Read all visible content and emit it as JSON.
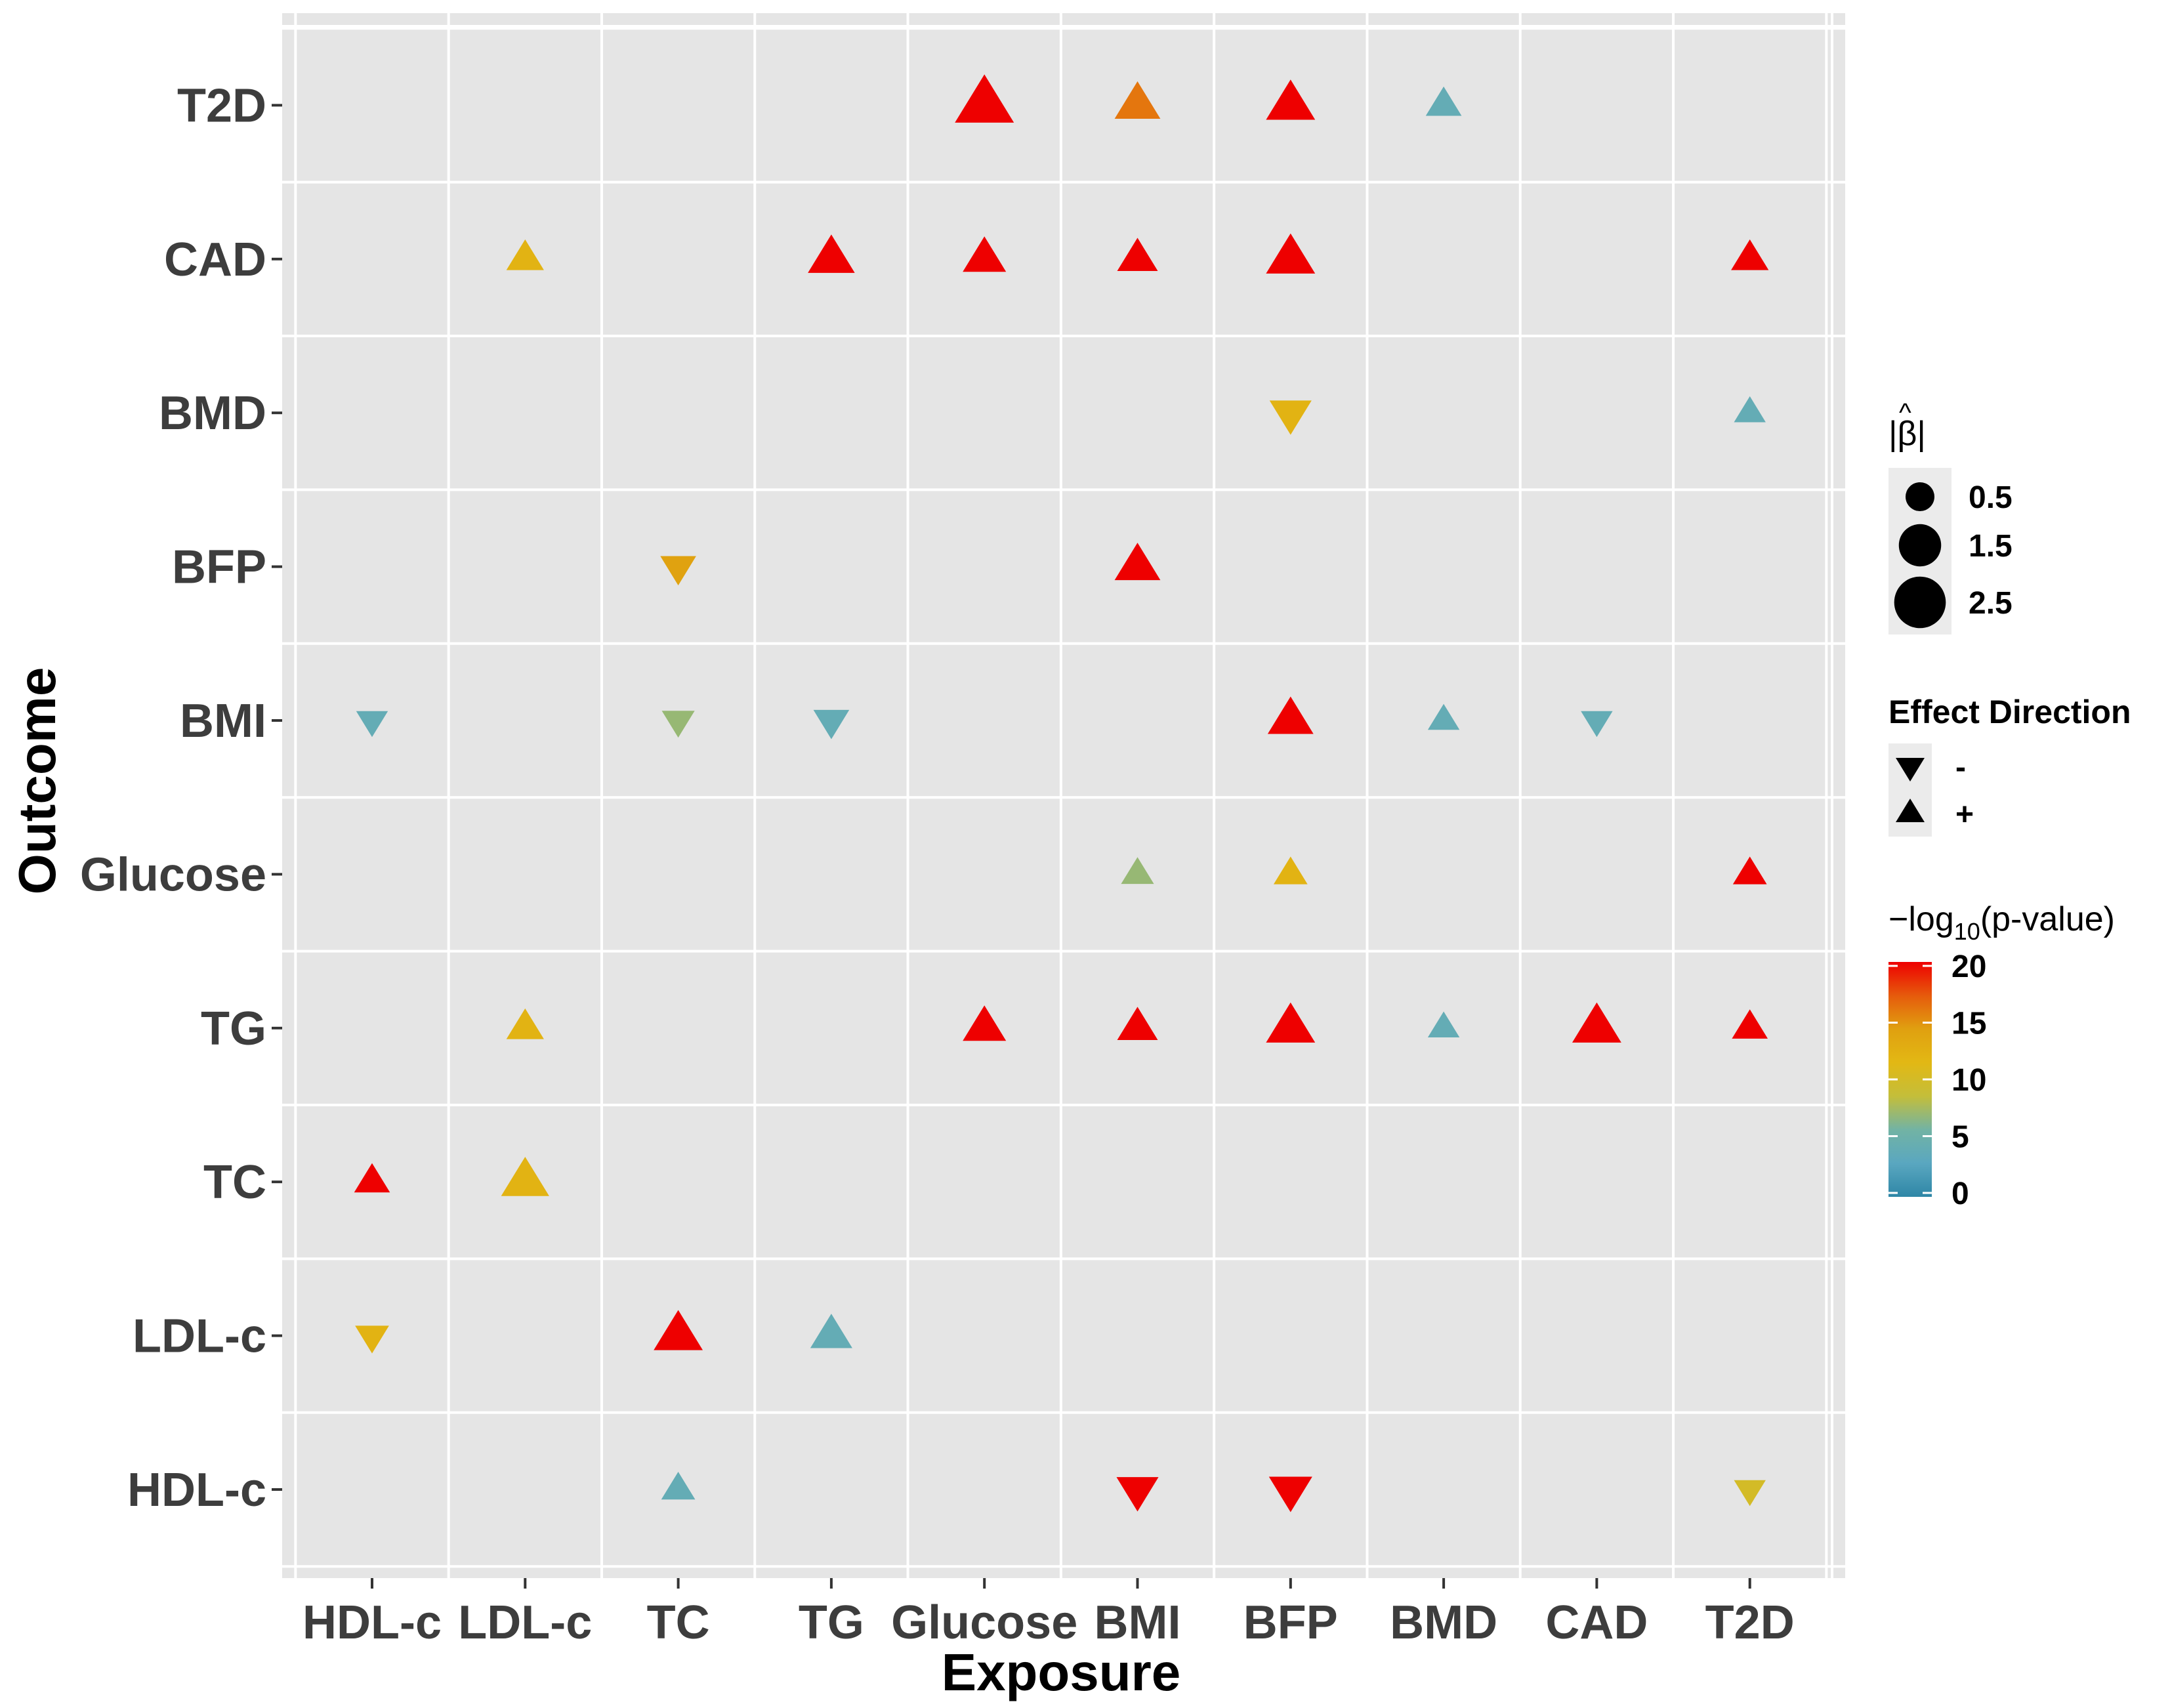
{
  "chart_data": {
    "type": "scatter",
    "xlabel": "Exposure",
    "ylabel": "Outcome",
    "x_categories": [
      "HDL-c",
      "LDL-c",
      "TC",
      "TG",
      "Glucose",
      "BMI",
      "BFP",
      "BMD",
      "CAD",
      "T2D"
    ],
    "y_categories": [
      "HDL-c",
      "LDL-c",
      "TC",
      "TG",
      "Glucose",
      "BMI",
      "BFP",
      "BMD",
      "CAD",
      "T2D"
    ],
    "size_legend": {
      "title": "|β̂|",
      "title_main": "|β|",
      "title_hat": "^",
      "values": [
        0.5,
        1.5,
        2.5
      ],
      "labels": [
        "0.5",
        "1.5",
        "2.5"
      ]
    },
    "direction_legend": {
      "title": "Effect Direction",
      "items": [
        {
          "label": "-",
          "direction": "-"
        },
        {
          "label": "+",
          "direction": "+"
        }
      ]
    },
    "color_legend": {
      "title": "−log10(p-value)",
      "title_prefix": "−log",
      "title_sub": "10",
      "title_suffix": "(p-value)",
      "range": [
        0,
        20
      ],
      "ticks": [
        0,
        5,
        10,
        15,
        20
      ],
      "tick_labels": [
        "0",
        "5",
        "10",
        "15",
        "20"
      ],
      "colors": [
        "#2e86a6",
        "#5aa7c0",
        "#72b3a4",
        "#c4be3a",
        "#e2b814",
        "#e0a010",
        "#e65a0c",
        "#ee0000"
      ]
    },
    "points": [
      {
        "exposure": "Glucose",
        "outcome": "T2D",
        "beta": 2.6,
        "direction": "+",
        "neglog10p": 20
      },
      {
        "exposure": "BMI",
        "outcome": "T2D",
        "beta": 1.2,
        "direction": "+",
        "neglog10p": 16
      },
      {
        "exposure": "BFP",
        "outcome": "T2D",
        "beta": 1.5,
        "direction": "+",
        "neglog10p": 20
      },
      {
        "exposure": "BMD",
        "outcome": "T2D",
        "beta": 0.5,
        "direction": "+",
        "neglog10p": 4
      },
      {
        "exposure": "LDL-c",
        "outcome": "CAD",
        "beta": 0.6,
        "direction": "+",
        "neglog10p": 12
      },
      {
        "exposure": "TG",
        "outcome": "CAD",
        "beta": 1.3,
        "direction": "+",
        "neglog10p": 20
      },
      {
        "exposure": "Glucose",
        "outcome": "CAD",
        "beta": 1.0,
        "direction": "+",
        "neglog10p": 20
      },
      {
        "exposure": "BMI",
        "outcome": "CAD",
        "beta": 0.8,
        "direction": "+",
        "neglog10p": 20
      },
      {
        "exposure": "BFP",
        "outcome": "CAD",
        "beta": 1.5,
        "direction": "+",
        "neglog10p": 20
      },
      {
        "exposure": "T2D",
        "outcome": "CAD",
        "beta": 0.6,
        "direction": "+",
        "neglog10p": 20
      },
      {
        "exposure": "BFP",
        "outcome": "BMD",
        "beta": 0.9,
        "direction": "-",
        "neglog10p": 12
      },
      {
        "exposure": "T2D",
        "outcome": "BMD",
        "beta": 0.3,
        "direction": "+",
        "neglog10p": 4
      },
      {
        "exposure": "TC",
        "outcome": "BFP",
        "beta": 0.5,
        "direction": "-",
        "neglog10p": 14
      },
      {
        "exposure": "BMI",
        "outcome": "BFP",
        "beta": 1.2,
        "direction": "+",
        "neglog10p": 20
      },
      {
        "exposure": "HDL-c",
        "outcome": "BMI",
        "beta": 0.3,
        "direction": "-",
        "neglog10p": 4
      },
      {
        "exposure": "TC",
        "outcome": "BMI",
        "beta": 0.35,
        "direction": "-",
        "neglog10p": 7
      },
      {
        "exposure": "TG",
        "outcome": "BMI",
        "beta": 0.5,
        "direction": "-",
        "neglog10p": 4
      },
      {
        "exposure": "BFP",
        "outcome": "BMI",
        "beta": 1.2,
        "direction": "+",
        "neglog10p": 20
      },
      {
        "exposure": "BMD",
        "outcome": "BMI",
        "beta": 0.3,
        "direction": "+",
        "neglog10p": 4
      },
      {
        "exposure": "CAD",
        "outcome": "BMI",
        "beta": 0.3,
        "direction": "-",
        "neglog10p": 4
      },
      {
        "exposure": "BMI",
        "outcome": "Glucose",
        "beta": 0.35,
        "direction": "+",
        "neglog10p": 7
      },
      {
        "exposure": "BFP",
        "outcome": "Glucose",
        "beta": 0.4,
        "direction": "+",
        "neglog10p": 12
      },
      {
        "exposure": "T2D",
        "outcome": "Glucose",
        "beta": 0.4,
        "direction": "+",
        "neglog10p": 20
      },
      {
        "exposure": "LDL-c",
        "outcome": "TG",
        "beta": 0.6,
        "direction": "+",
        "neglog10p": 12
      },
      {
        "exposure": "Glucose",
        "outcome": "TG",
        "beta": 1.0,
        "direction": "+",
        "neglog10p": 20
      },
      {
        "exposure": "BMI",
        "outcome": "TG",
        "beta": 0.8,
        "direction": "+",
        "neglog10p": 20
      },
      {
        "exposure": "BFP",
        "outcome": "TG",
        "beta": 1.5,
        "direction": "+",
        "neglog10p": 20
      },
      {
        "exposure": "BMD",
        "outcome": "TG",
        "beta": 0.3,
        "direction": "+",
        "neglog10p": 4
      },
      {
        "exposure": "CAD",
        "outcome": "TG",
        "beta": 1.5,
        "direction": "+",
        "neglog10p": 20
      },
      {
        "exposure": "T2D",
        "outcome": "TG",
        "beta": 0.5,
        "direction": "+",
        "neglog10p": 20
      },
      {
        "exposure": "HDL-c",
        "outcome": "TC",
        "beta": 0.5,
        "direction": "+",
        "neglog10p": 20
      },
      {
        "exposure": "LDL-c",
        "outcome": "TC",
        "beta": 1.4,
        "direction": "+",
        "neglog10p": 12
      },
      {
        "exposure": "HDL-c",
        "outcome": "LDL-c",
        "beta": 0.4,
        "direction": "-",
        "neglog10p": 12
      },
      {
        "exposure": "TC",
        "outcome": "LDL-c",
        "beta": 1.5,
        "direction": "+",
        "neglog10p": 20
      },
      {
        "exposure": "TG",
        "outcome": "LDL-c",
        "beta": 0.9,
        "direction": "+",
        "neglog10p": 4
      },
      {
        "exposure": "TC",
        "outcome": "HDL-c",
        "beta": 0.4,
        "direction": "+",
        "neglog10p": 4
      },
      {
        "exposure": "BMI",
        "outcome": "HDL-c",
        "beta": 0.9,
        "direction": "-",
        "neglog10p": 20
      },
      {
        "exposure": "BFP",
        "outcome": "HDL-c",
        "beta": 1.0,
        "direction": "-",
        "neglog10p": 20
      },
      {
        "exposure": "T2D",
        "outcome": "HDL-c",
        "beta": 0.3,
        "direction": "-",
        "neglog10p": 10
      }
    ]
  }
}
